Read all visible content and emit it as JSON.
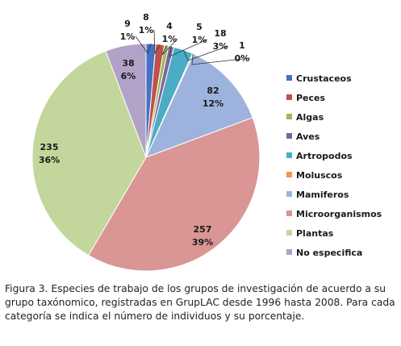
{
  "chart_data": {
    "type": "pie",
    "categories": [
      "Crustaceos",
      "Peces",
      "Algas",
      "Aves",
      "Artropodos",
      "Moluscos",
      "Mamiferos",
      "Microorganismos",
      "Plantas",
      "No especifica"
    ],
    "values": [
      9,
      8,
      4,
      5,
      18,
      1,
      82,
      257,
      235,
      38
    ],
    "percent_labels": [
      "1%",
      "1%",
      "1%",
      "1%",
      "3%",
      "0%",
      "12%",
      "39%",
      "36%",
      "6%"
    ],
    "colors": [
      "#4472c4",
      "#c0504d",
      "#9bbb59",
      "#8064a2",
      "#4bacc6",
      "#f79646",
      "#9db3dd",
      "#d99694",
      "#c3d69b",
      "#b3a2c7"
    ],
    "legend_position": "right"
  },
  "caption": "Figura 3. Especies de trabajo de los grupos de investigación de acuerdo a su grupo taxónomico, registradas en GrupLAC desde 1996 hasta 2008. Para cada categoría se indica el número de individuos y su porcentaje."
}
